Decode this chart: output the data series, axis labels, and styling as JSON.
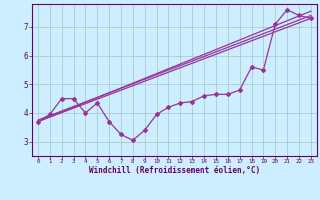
{
  "title": "",
  "xlabel": "Windchill (Refroidissement éolien,°C)",
  "ylabel": "",
  "background_color": "#cceeff",
  "line_color": "#993399",
  "grid_color": "#aacccc",
  "xlim": [
    -0.5,
    23.5
  ],
  "ylim": [
    2.5,
    7.8
  ],
  "yticks": [
    3,
    4,
    5,
    6,
    7
  ],
  "xticks": [
    0,
    1,
    2,
    3,
    4,
    5,
    6,
    7,
    8,
    9,
    10,
    11,
    12,
    13,
    14,
    15,
    16,
    17,
    18,
    19,
    20,
    21,
    22,
    23
  ],
  "series1_x": [
    0,
    1,
    2,
    3,
    4,
    5,
    6,
    7,
    8,
    9,
    10,
    11,
    12,
    13,
    14,
    15,
    16,
    17,
    18,
    19,
    20,
    21,
    22,
    23
  ],
  "series1_y": [
    3.7,
    3.95,
    4.5,
    4.5,
    4.0,
    4.35,
    3.7,
    3.25,
    3.05,
    3.4,
    3.95,
    4.2,
    4.35,
    4.4,
    4.6,
    4.65,
    4.65,
    4.8,
    5.6,
    5.5,
    7.1,
    7.6,
    7.4,
    7.3
  ],
  "line2_x": [
    0,
    23
  ],
  "line2_y": [
    3.7,
    7.3
  ],
  "line3_x": [
    0,
    23
  ],
  "line3_y": [
    3.7,
    7.55
  ],
  "line4_x": [
    0,
    23
  ],
  "line4_y": [
    3.75,
    7.4
  ]
}
